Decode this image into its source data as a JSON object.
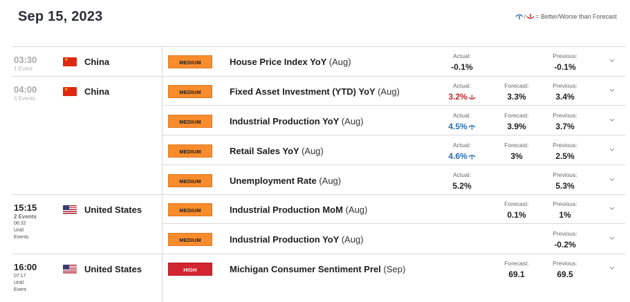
{
  "date": "Sep 15, 2023",
  "legend": {
    "text": "= Better/Worse than Forecast",
    "better_color": "#2a6fb2",
    "worse_color": "#c0282f"
  },
  "labels": {
    "actual": "Actual:",
    "forecast": "Forecast:",
    "previous": "Previous:"
  },
  "colors": {
    "medium": "#f98c2d",
    "high": "#d3252f"
  },
  "groups": [
    {
      "time": "03:30",
      "count": "1 Event",
      "country": "China",
      "flag": "cn-flag-icon",
      "past": true,
      "events": [
        {
          "badge": "MEDIUM",
          "name": "House Price Index YoY",
          "period": "(Aug)",
          "actual": "-0.1%",
          "forecast": "",
          "previous": "-0.1%"
        }
      ]
    },
    {
      "time": "04:00",
      "count": "4 Events",
      "country": "China",
      "flag": "cn-flag-icon",
      "past": true,
      "events": [
        {
          "badge": "MEDIUM",
          "name": "Fixed Asset Investment (YTD) YoY",
          "period": "(Aug)",
          "actual": "3.2%",
          "direction": "worse",
          "forecast": "3.3%",
          "previous": "3.4%"
        },
        {
          "badge": "MEDIUM",
          "name": "Industrial Production YoY",
          "period": "(Aug)",
          "actual": "4.5%",
          "direction": "better",
          "forecast": "3.9%",
          "previous": "3.7%"
        },
        {
          "badge": "MEDIUM",
          "name": "Retail Sales YoY",
          "period": "(Aug)",
          "actual": "4.6%",
          "direction": "better",
          "forecast": "3%",
          "previous": "2.5%"
        },
        {
          "badge": "MEDIUM",
          "name": "Unemployment Rate",
          "period": "(Aug)",
          "actual": "5.2%",
          "forecast": "",
          "previous": "5.3%"
        }
      ]
    },
    {
      "time": "15:15",
      "count": "2 Events",
      "countdown": "06:32",
      "until": "Until",
      "until2": "Events",
      "country": "United States",
      "flag": "us-flag-icon",
      "past": false,
      "events": [
        {
          "badge": "MEDIUM",
          "name": "Industrial Production MoM",
          "period": "(Aug)",
          "actual": "",
          "forecast": "0.1%",
          "previous": "1%"
        },
        {
          "badge": "MEDIUM",
          "name": "Industrial Production YoY",
          "period": "(Aug)",
          "actual": "",
          "forecast": "",
          "previous": "-0.2%"
        }
      ]
    },
    {
      "time": "16:00",
      "countdown": "07:17",
      "until": "Until",
      "until2": "Event",
      "country": "United States",
      "flag": "us-flag-icon",
      "past": false,
      "events": [
        {
          "badge": "HIGH",
          "name": "Michigan Consumer Sentiment Prel",
          "period": "(Sep)",
          "actual": "",
          "forecast": "69.1",
          "previous": "69.5"
        }
      ]
    }
  ]
}
